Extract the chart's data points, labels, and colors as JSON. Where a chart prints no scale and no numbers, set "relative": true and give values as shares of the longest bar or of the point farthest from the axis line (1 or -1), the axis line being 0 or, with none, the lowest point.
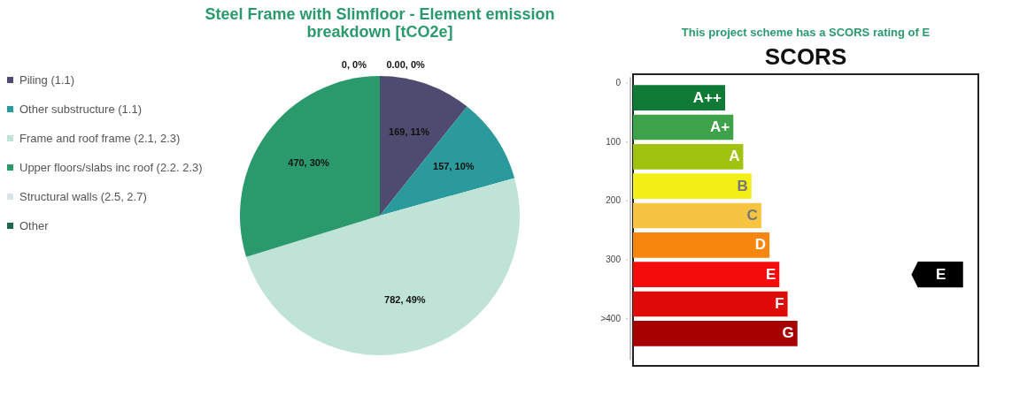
{
  "chart_data": [
    {
      "type": "pie",
      "title": "Steel Frame with Slimfloor - Element emission breakdown [tCO2e]",
      "categories": [
        "Piling (1.1)",
        "Other substructure (1.1)",
        "Frame and roof frame (2.1, 2.3)",
        "Upper floors/slabs inc roof (2.2. 2.3)",
        "Structural walls (2.5, 2.7)",
        "Other"
      ],
      "values": [
        169,
        157,
        782,
        470,
        0,
        0
      ],
      "value_labels": [
        "169, 11%",
        "157, 10%",
        "782, 49%",
        "470, 30%",
        "0, 0%",
        "0.00, 0%"
      ],
      "colors": [
        "#4f4a6f",
        "#2a9a9c",
        "#bfe3d7",
        "#2a9a6c",
        "#d9e4ea",
        "#1f6650"
      ],
      "legend": "left"
    },
    {
      "type": "bar",
      "orientation": "horizontal",
      "relative": true,
      "title": "This project scheme has a SCORS rating of E",
      "subtitle": "SCORS",
      "categories": [
        "A++",
        "A+",
        "A",
        "B",
        "C",
        "D",
        "E",
        "F",
        "G"
      ],
      "values": [
        0.56,
        0.61,
        0.67,
        0.72,
        0.78,
        0.83,
        0.89,
        0.94,
        1
      ],
      "colors": [
        "#0e7a36",
        "#3ea24a",
        "#9fc30e",
        "#f2ef16",
        "#f7c442",
        "#f7860e",
        "#f40c0c",
        "#de0a0a",
        "#a60202"
      ],
      "annotations": [
        "0",
        "100",
        "200",
        "300",
        ">400",
        "E"
      ]
    }
  ]
}
